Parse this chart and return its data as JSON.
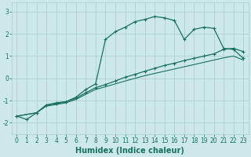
{
  "background_color": "#cde8e8",
  "grid_color": "#a8cccc",
  "line_color": "#1a7060",
  "xlabel": "Humidex (Indice chaleur)",
  "xlabel_fontsize": 7,
  "tick_fontsize": 5.5,
  "xlim": [
    -0.5,
    23.5
  ],
  "ylim": [
    -2.5,
    3.4
  ],
  "yticks": [
    -2,
    -1,
    0,
    1,
    2,
    3
  ],
  "xticks": [
    0,
    1,
    2,
    3,
    4,
    5,
    6,
    7,
    8,
    9,
    10,
    11,
    12,
    13,
    14,
    15,
    16,
    17,
    18,
    19,
    20,
    21,
    22,
    23
  ],
  "curve1_x": [
    0,
    1,
    2,
    3,
    4,
    5,
    6,
    7,
    8,
    9,
    10,
    11,
    12,
    13,
    14,
    15,
    16,
    17,
    18,
    19,
    20,
    21,
    22,
    23
  ],
  "curve1_y": [
    -1.7,
    -1.85,
    -1.55,
    -1.2,
    -1.1,
    -1.05,
    -0.85,
    -0.5,
    -0.25,
    1.75,
    2.1,
    2.3,
    2.55,
    2.65,
    2.78,
    2.72,
    2.6,
    1.75,
    2.2,
    2.3,
    2.25,
    1.35,
    1.3,
    0.9
  ],
  "curve2_x": [
    0,
    2,
    3,
    4,
    5,
    6,
    7,
    8,
    9,
    10,
    11,
    12,
    13,
    14,
    15,
    16,
    17,
    18,
    19,
    20,
    21,
    22,
    23
  ],
  "curve2_y": [
    -1.7,
    -1.55,
    -1.2,
    -1.15,
    -1.05,
    -0.9,
    -0.65,
    -0.42,
    -0.28,
    -0.12,
    0.05,
    0.18,
    0.32,
    0.45,
    0.58,
    0.68,
    0.8,
    0.9,
    1.0,
    1.1,
    1.3,
    1.35,
    1.2
  ],
  "curve2_markers_x": [
    2,
    3,
    4,
    5,
    6,
    7,
    8,
    9,
    10,
    11,
    12,
    13,
    14,
    15,
    16,
    17,
    18,
    19,
    20,
    21,
    22,
    23
  ],
  "curve3_x": [
    0,
    2,
    3,
    4,
    5,
    6,
    7,
    8,
    9,
    10,
    11,
    12,
    13,
    14,
    15,
    16,
    17,
    18,
    19,
    20,
    21,
    22,
    23
  ],
  "curve3_y": [
    -1.7,
    -1.55,
    -1.25,
    -1.18,
    -1.1,
    -0.95,
    -0.72,
    -0.5,
    -0.38,
    -0.25,
    -0.12,
    0.0,
    0.12,
    0.22,
    0.32,
    0.42,
    0.52,
    0.62,
    0.72,
    0.82,
    0.92,
    1.0,
    0.82
  ]
}
